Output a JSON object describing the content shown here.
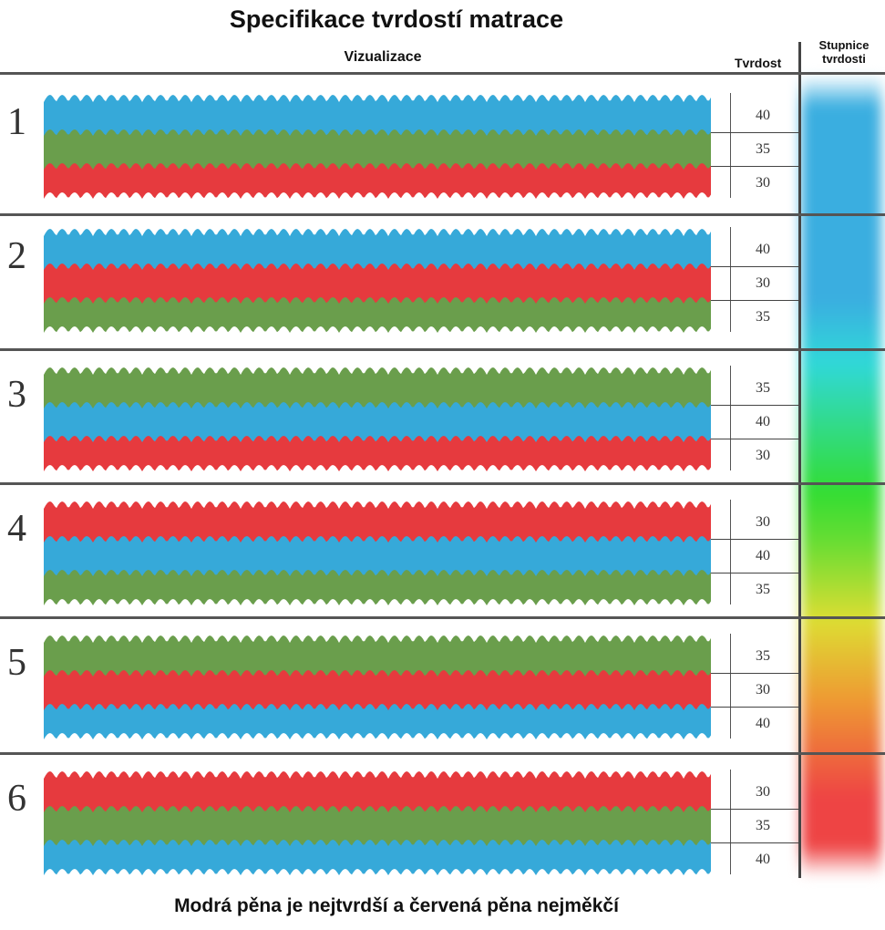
{
  "title": "Specifikace tvrdostí matrace",
  "headers": {
    "visualization": "Vizualizace",
    "hardness": "Tvrdost",
    "scale": "Stupnice tvrdosti"
  },
  "colors": {
    "blue": "#36a9d9",
    "green": "#6a9e4c",
    "red": "#e63a3e"
  },
  "hardness_scale": {
    "top_color": "#3aaee0",
    "bottom_color": "#ee4444",
    "stops": [
      "blue",
      "cyan",
      "green",
      "yellow",
      "orange",
      "red"
    ]
  },
  "rows": [
    {
      "number": "1",
      "layers": [
        {
          "color": "blue",
          "hardness": "40"
        },
        {
          "color": "green",
          "hardness": "35"
        },
        {
          "color": "red",
          "hardness": "30"
        }
      ]
    },
    {
      "number": "2",
      "layers": [
        {
          "color": "blue",
          "hardness": "40"
        },
        {
          "color": "red",
          "hardness": "30"
        },
        {
          "color": "green",
          "hardness": "35"
        }
      ]
    },
    {
      "number": "3",
      "layers": [
        {
          "color": "green",
          "hardness": "35"
        },
        {
          "color": "blue",
          "hardness": "40"
        },
        {
          "color": "red",
          "hardness": "30"
        }
      ]
    },
    {
      "number": "4",
      "layers": [
        {
          "color": "red",
          "hardness": "30"
        },
        {
          "color": "blue",
          "hardness": "40"
        },
        {
          "color": "green",
          "hardness": "35"
        }
      ]
    },
    {
      "number": "5",
      "layers": [
        {
          "color": "green",
          "hardness": "35"
        },
        {
          "color": "red",
          "hardness": "30"
        },
        {
          "color": "blue",
          "hardness": "40"
        }
      ]
    },
    {
      "number": "6",
      "layers": [
        {
          "color": "red",
          "hardness": "30"
        },
        {
          "color": "green",
          "hardness": "35"
        },
        {
          "color": "blue",
          "hardness": "40"
        }
      ]
    }
  ],
  "footer": "Modrá pěna je nejtvrdší a červená pěna nejměkčí"
}
